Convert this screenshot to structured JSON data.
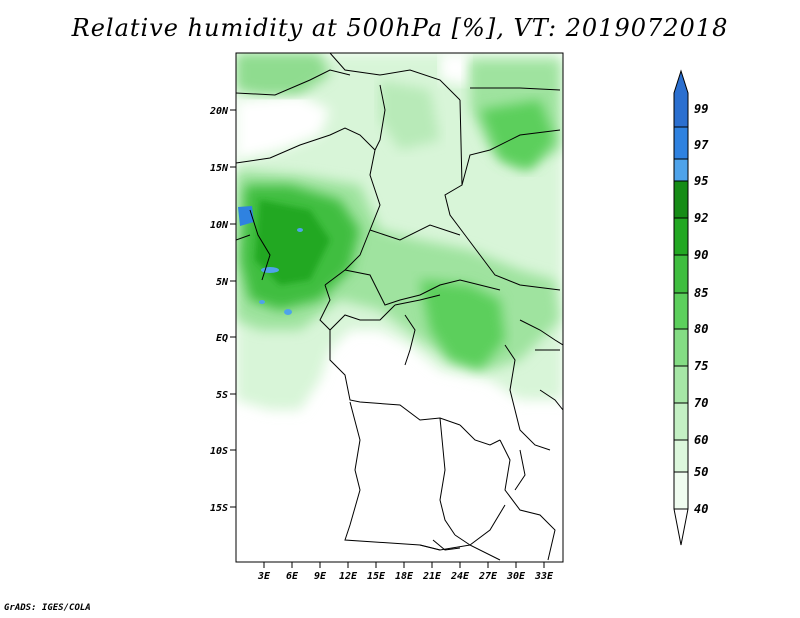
{
  "title": "Relative humidity at 500hPa [%], VT: 2019072018",
  "credit": "GrADS: IGES/COLA",
  "map": {
    "lat_labels": [
      "20N",
      "15N",
      "10N",
      "5N",
      "EQ",
      "5S",
      "10S",
      "15S"
    ],
    "lon_labels": [
      "3E",
      "6E",
      "9E",
      "12E",
      "15E",
      "18E",
      "21E",
      "24E",
      "27E",
      "30E",
      "33E"
    ]
  },
  "colorbar": {
    "labels": [
      "99",
      "97",
      "95",
      "92",
      "90",
      "85",
      "80",
      "75",
      "70",
      "60",
      "50",
      "40"
    ],
    "colors": [
      "#2b6fcf",
      "#2f82e0",
      "#4fa3ea",
      "#168c16",
      "#22a822",
      "#3fbe3f",
      "#5ccf5c",
      "#84dc84",
      "#a6e6a6",
      "#c4f0c4",
      "#dcf7dc",
      "#f0fcf0"
    ]
  }
}
